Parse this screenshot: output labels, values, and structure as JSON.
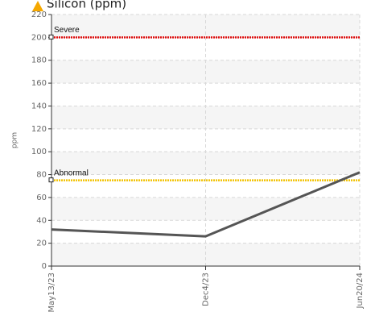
{
  "chart_data": {
    "type": "line",
    "title": "Silicon (ppm)",
    "y_label": "ppm",
    "categories": [
      "May13/23",
      "Dec4/23",
      "Jun20/24"
    ],
    "series": [
      {
        "name": "Silicon",
        "color": "#555555",
        "values": [
          32,
          26,
          82
        ]
      }
    ],
    "thresholds": [
      {
        "name": "Severe",
        "value": 200,
        "color": "#e01010"
      },
      {
        "name": "Abnormal",
        "value": 75,
        "color": "#f2c200"
      }
    ],
    "ylim": [
      0,
      220
    ],
    "yticks": [
      0,
      20,
      40,
      60,
      80,
      100,
      120,
      140,
      160,
      180,
      200,
      220
    ],
    "grid": true
  }
}
